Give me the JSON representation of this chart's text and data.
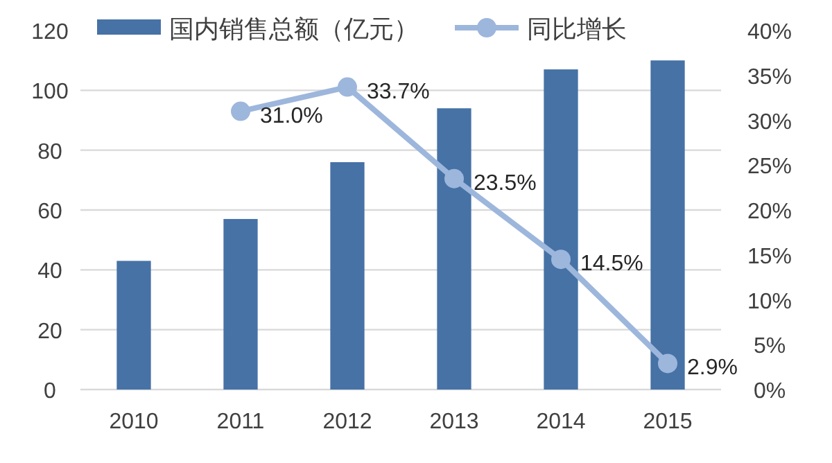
{
  "chart_data": {
    "type": "bar",
    "categories": [
      "2010",
      "2011",
      "2012",
      "2013",
      "2014",
      "2015"
    ],
    "series": [
      {
        "name": "国内销售总额（亿元）",
        "color": "#4672a6",
        "values": [
          43,
          57,
          76,
          94,
          107,
          110
        ]
      },
      {
        "name": "同比增长",
        "type": "line",
        "axis": "y2",
        "color": "#9db6dc",
        "marker": "circle",
        "values": [
          null,
          31.0,
          33.7,
          23.5,
          14.5,
          2.9
        ],
        "value_labels": [
          null,
          "31.0%",
          "33.7%",
          "23.5%",
          "14.5%",
          "2.9%"
        ]
      }
    ],
    "ylim": [
      0,
      120
    ],
    "yticks": [
      0,
      20,
      40,
      60,
      80,
      100,
      120
    ],
    "y2lim": [
      0,
      40
    ],
    "y2ticks": [
      {
        "value": 0,
        "label": "0%"
      },
      {
        "value": 5,
        "label": "5%"
      },
      {
        "value": 10,
        "label": "10%"
      },
      {
        "value": 15,
        "label": "15%"
      },
      {
        "value": 20,
        "label": "20%"
      },
      {
        "value": 25,
        "label": "25%"
      },
      {
        "value": 30,
        "label": "30%"
      },
      {
        "value": 35,
        "label": "35%"
      },
      {
        "value": 40,
        "label": "40%"
      }
    ],
    "grid": "y",
    "legend": "top"
  }
}
